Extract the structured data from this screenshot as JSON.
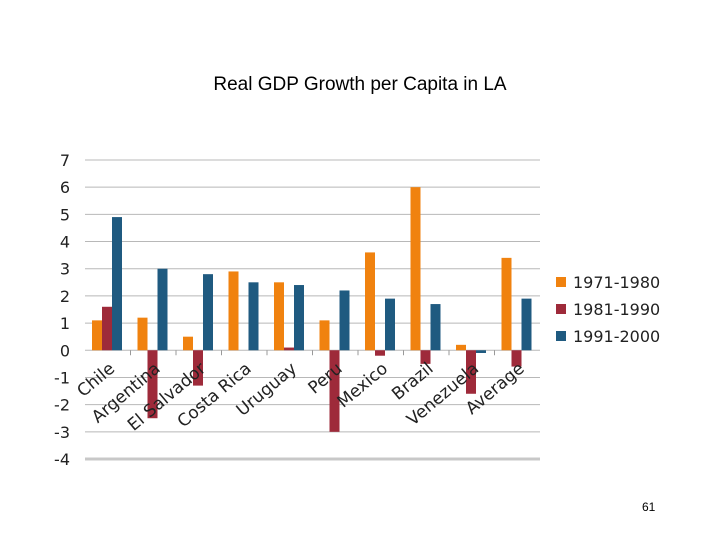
{
  "page_number": "61",
  "chart_data": {
    "type": "bar",
    "title": "Real GDP Growth per Capita in LA",
    "xlabel": "",
    "ylabel": "",
    "ylim": [
      -4,
      7
    ],
    "yticks": [
      "7",
      "6",
      "5",
      "4",
      "3",
      "2",
      "1",
      "0",
      "-1",
      "-2",
      "-3",
      "-4"
    ],
    "grid": true,
    "legend_position": "right",
    "categories": [
      "Chile",
      "Argentina",
      "El Salvador",
      "Costa Rica",
      "Uruguay",
      "Peru",
      "Mexico",
      "Brazil",
      "Venezuela",
      "Average"
    ],
    "series": [
      {
        "name": "1971-1980",
        "color": "#f0820f",
        "values": [
          1.1,
          1.2,
          0.5,
          2.9,
          2.5,
          1.1,
          3.6,
          6.0,
          0.2,
          3.4
        ]
      },
      {
        "name": "1981-1990",
        "color": "#9e2a3a",
        "values": [
          1.6,
          -2.5,
          -1.3,
          0,
          0.1,
          -3.0,
          -0.2,
          -0.5,
          -1.6,
          -0.6
        ]
      },
      {
        "name": "1991-2000",
        "color": "#1f5a80",
        "values": [
          4.9,
          3.0,
          2.8,
          2.5,
          2.4,
          2.2,
          1.9,
          1.7,
          -0.1,
          1.9
        ]
      }
    ]
  }
}
